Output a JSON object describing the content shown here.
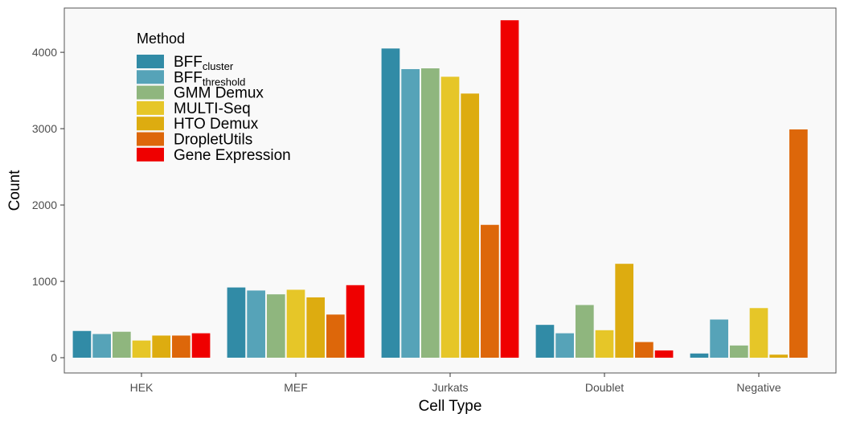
{
  "chart_data": {
    "type": "bar",
    "xlabel": "Cell Type",
    "ylabel": "Count",
    "ylim": [
      -200,
      4580
    ],
    "yticks": [
      0,
      1000,
      2000,
      3000,
      4000
    ],
    "categories": [
      "HEK",
      "MEF",
      "Jurkats",
      "Doublet",
      "Negative"
    ],
    "legend": {
      "title": "Method",
      "position": "top-left"
    },
    "series": [
      {
        "name": "BFF",
        "subscript": "cluster",
        "color": "#318ba6",
        "values": [
          350,
          920,
          4050,
          430,
          55
        ]
      },
      {
        "name": "BFF",
        "subscript": "threshold",
        "color": "#56a3b8",
        "values": [
          310,
          880,
          3780,
          320,
          500
        ]
      },
      {
        "name": "GMM Demux",
        "color": "#8fb67e",
        "values": [
          340,
          830,
          3790,
          690,
          160
        ]
      },
      {
        "name": "MULTI-Seq",
        "color": "#e6c628",
        "values": [
          225,
          890,
          3680,
          360,
          650
        ]
      },
      {
        "name": "HTO Demux",
        "color": "#ddac10",
        "values": [
          290,
          790,
          3460,
          1230,
          40
        ]
      },
      {
        "name": "DropletUtils",
        "color": "#dd670a",
        "values": [
          290,
          565,
          1740,
          205,
          2990
        ]
      },
      {
        "name": "Gene Expression",
        "color": "#ef0000",
        "values": [
          320,
          950,
          4420,
          95,
          0
        ]
      }
    ]
  }
}
